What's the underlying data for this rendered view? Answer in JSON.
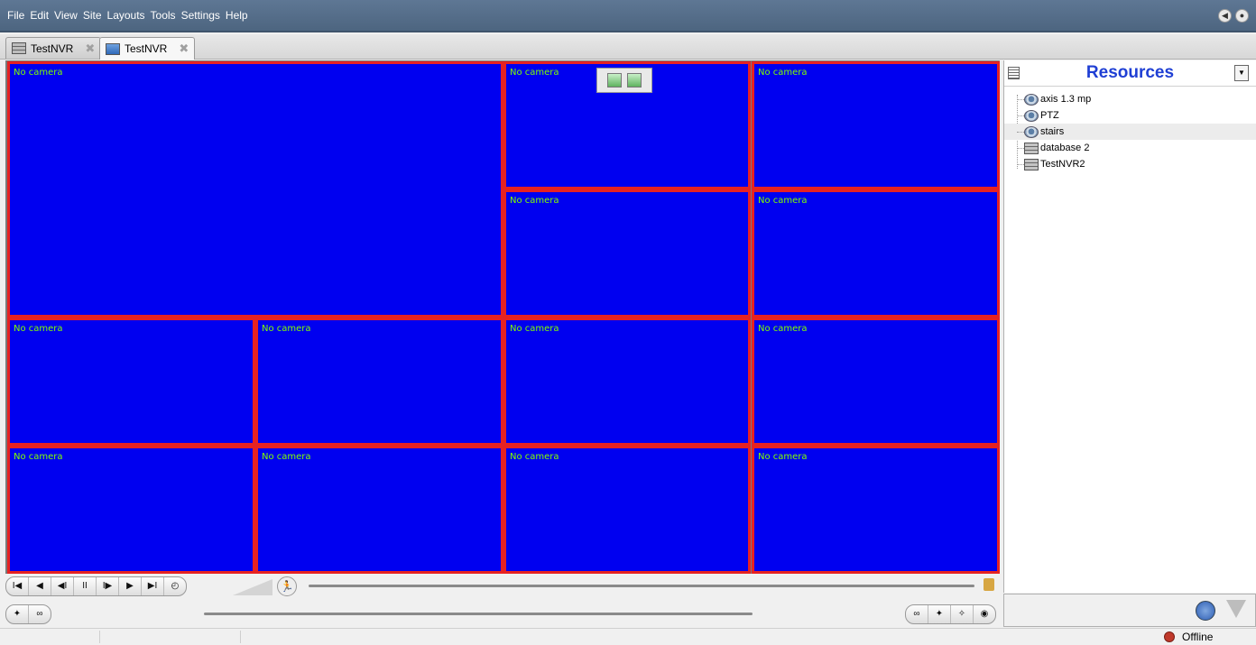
{
  "menubar": {
    "items": [
      "File",
      "Edit",
      "View",
      "Site",
      "Layouts",
      "Tools",
      "Settings",
      "Help"
    ],
    "right_icons": [
      "audio-icon",
      "microphone-icon"
    ]
  },
  "tabs": [
    {
      "label": "TestNVR",
      "icon": "server-icon",
      "active": false
    },
    {
      "label": "TestNVR",
      "icon": "layout-icon",
      "active": true
    }
  ],
  "camera_grid": {
    "cell_label": "No camera",
    "colors": {
      "cell_bg": "#0000f0",
      "cell_border": "#e62222",
      "label": "#7fff00"
    }
  },
  "resources": {
    "title": "Resources",
    "tree": [
      {
        "label": "axis 1.3 mp",
        "icon": "camera-icon"
      },
      {
        "label": "PTZ",
        "icon": "camera-icon"
      },
      {
        "label": "stairs",
        "icon": "camera-icon",
        "selected": true
      },
      {
        "label": "database 2",
        "icon": "server-icon"
      },
      {
        "label": "TestNVR2",
        "icon": "server-icon"
      }
    ]
  },
  "controls": {
    "playback_buttons": [
      {
        "name": "skip-to-start-button",
        "glyph": "I◀"
      },
      {
        "name": "rewind-button",
        "glyph": "◀"
      },
      {
        "name": "step-back-button",
        "glyph": "◀I"
      },
      {
        "name": "pause-button",
        "glyph": "II"
      },
      {
        "name": "step-forward-button",
        "glyph": "I▶"
      },
      {
        "name": "play-button",
        "glyph": "▶"
      },
      {
        "name": "skip-to-end-button",
        "glyph": "▶I"
      },
      {
        "name": "speed-dial-button",
        "glyph": "◴"
      }
    ]
  },
  "status": {
    "text": "Offline"
  }
}
